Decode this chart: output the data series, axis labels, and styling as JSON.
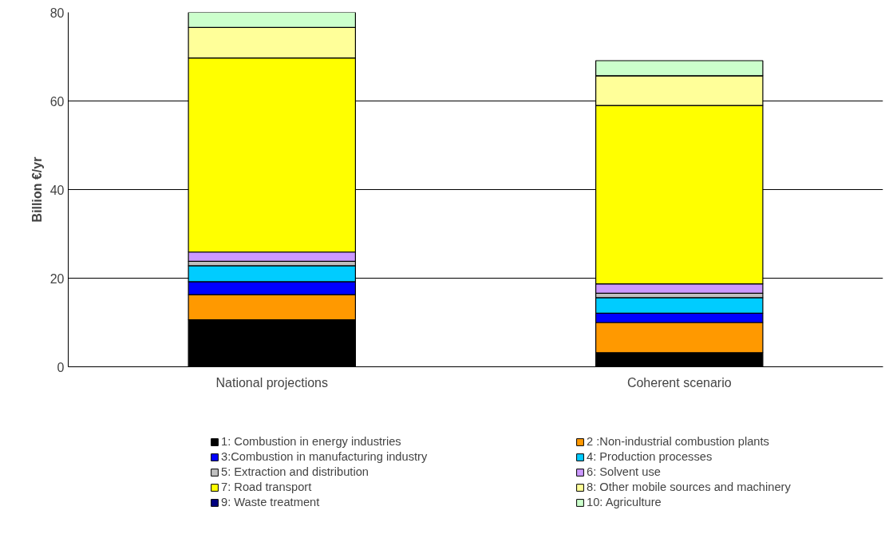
{
  "chart_data": {
    "type": "bar",
    "stacked": true,
    "ylabel": "Billion €/yr",
    "categories": [
      "National projections",
      "Coherent scenario"
    ],
    "series": [
      {
        "name": "1: Combustion in energy industries",
        "color": "#000000",
        "values": [
          10.6,
          3.2
        ]
      },
      {
        "name": "2 :Non-industrial combustion plants",
        "color": "#ff9900",
        "values": [
          5.7,
          6.8
        ]
      },
      {
        "name": "3:Combustion in manufacturing industry",
        "color": "#0000ff",
        "values": [
          2.9,
          2.1
        ]
      },
      {
        "name": "4: Production processes",
        "color": "#00ccff",
        "values": [
          3.6,
          3.5
        ]
      },
      {
        "name": "5: Extraction and distribution",
        "color": "#c0c0c0",
        "values": [
          1.0,
          1.0
        ]
      },
      {
        "name": "6: Solvent use",
        "color": "#cc99ff",
        "values": [
          2.1,
          2.1
        ]
      },
      {
        "name": "7: Road transport",
        "color": "#ffff00",
        "values": [
          43.8,
          40.3
        ]
      },
      {
        "name": "8: Other mobile sources and machinery",
        "color": "#ffff99",
        "values": [
          6.9,
          6.7
        ]
      },
      {
        "name": "9: Waste treatment",
        "color": "#000080",
        "values": [
          0,
          0
        ]
      },
      {
        "name": "10: Agriculture",
        "color": "#ccffcc",
        "values": [
          3.4,
          3.4
        ]
      }
    ],
    "ylim": [
      0,
      80
    ],
    "yticks": [
      0,
      20,
      40,
      60,
      80
    ],
    "grid": "y",
    "legend": "bottom"
  }
}
